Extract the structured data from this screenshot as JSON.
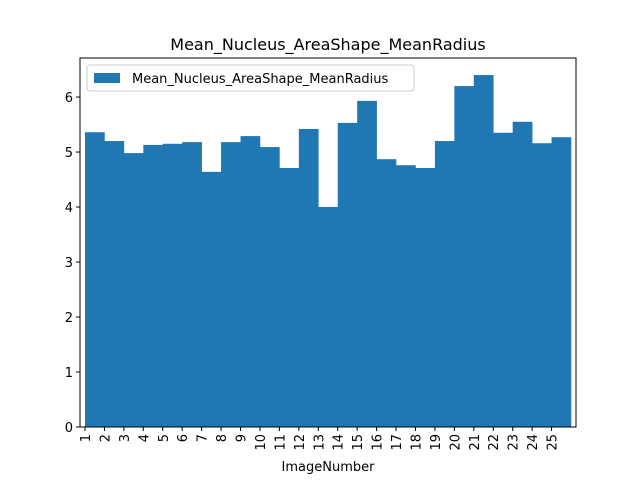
{
  "chart_data": {
    "type": "bar",
    "title": "Mean_Nucleus_AreaShape_MeanRadius",
    "xlabel": "ImageNumber",
    "categories": [
      "1",
      "2",
      "3",
      "4",
      "5",
      "6",
      "7",
      "8",
      "9",
      "10",
      "11",
      "12",
      "13",
      "14",
      "15",
      "16",
      "17",
      "18",
      "19",
      "20",
      "21",
      "22",
      "23",
      "24",
      "25"
    ],
    "series": [
      {
        "name": "Mean_Nucleus_AreaShape_MeanRadius",
        "color": "#1f77b4",
        "values": [
          5.36,
          5.2,
          4.98,
          5.13,
          5.15,
          5.18,
          4.64,
          5.18,
          5.29,
          5.09,
          4.71,
          5.42,
          4.0,
          5.53,
          5.93,
          4.87,
          4.76,
          4.71,
          5.2,
          6.2,
          6.4,
          5.35,
          5.55,
          5.16,
          5.27
        ]
      }
    ],
    "ylim": [
      0,
      6.71
    ],
    "yticks": [
      0,
      1,
      2,
      3,
      4,
      5,
      6
    ],
    "legend": "upper left"
  }
}
